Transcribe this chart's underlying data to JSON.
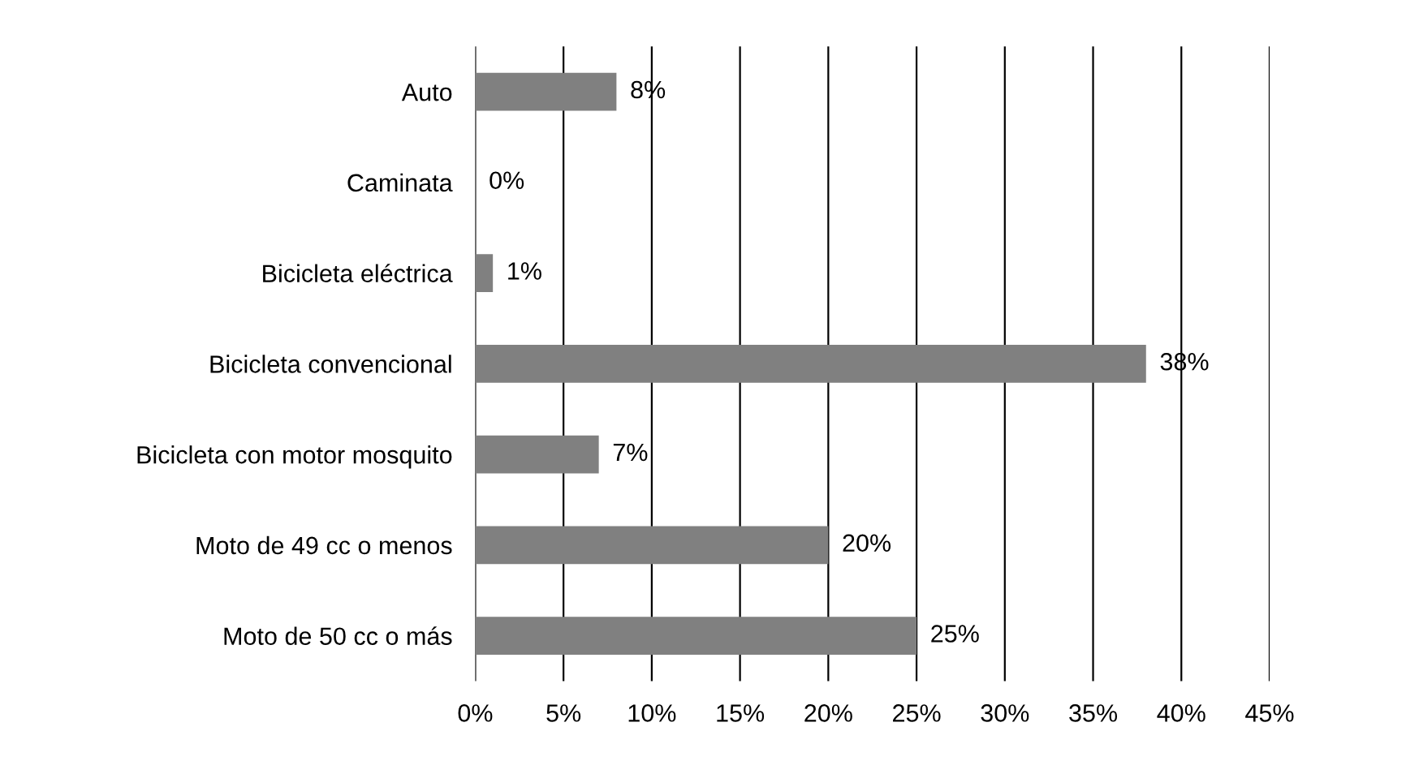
{
  "chart_data": {
    "type": "bar",
    "orientation": "horizontal",
    "categories": [
      "Auto",
      "Caminata",
      "Bicicleta eléctrica",
      "Bicicleta convencional",
      "Bicicleta con motor mosquito",
      "Moto de 49 cc o menos",
      "Moto de 50 cc o más"
    ],
    "values": [
      8,
      0,
      1,
      38,
      7,
      20,
      25
    ],
    "color": "#808080",
    "value_labels": [
      "8%",
      "0%",
      "1%",
      "38%",
      "7%",
      "20%",
      "25%"
    ],
    "xlim": [
      0,
      45
    ],
    "xticks": [
      {
        "value": 0,
        "label": "0%"
      },
      {
        "value": 5,
        "label": "5%"
      },
      {
        "value": 10,
        "label": "10%"
      },
      {
        "value": 15,
        "label": "15%"
      },
      {
        "value": 20,
        "label": "20%"
      },
      {
        "value": 25,
        "label": "25%"
      },
      {
        "value": 30,
        "label": "30%"
      },
      {
        "value": 35,
        "label": "35%"
      },
      {
        "value": 40,
        "label": "40%"
      },
      {
        "value": 45,
        "label": "45%"
      }
    ],
    "grid": "x",
    "legend": false
  }
}
